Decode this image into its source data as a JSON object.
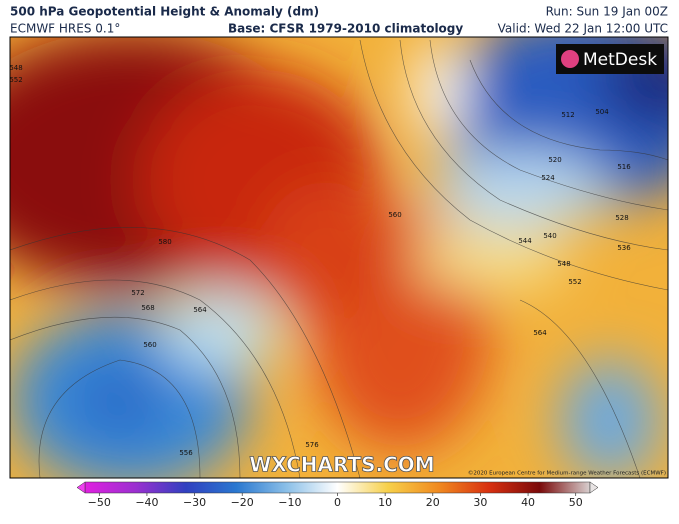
{
  "header": {
    "title": "500 hPa Geopotential Height & Anomaly (dm)",
    "model": "ECMWF HRES 0.1°",
    "base": "Base: CFSR 1979-2010 climatology",
    "run": "Run: Sun 19 Jan 00Z",
    "valid": "Valid: Wed 22 Jan 12:00 UTC"
  },
  "map": {
    "logo": "MetDesk",
    "watermark": "WXCHARTS.COM",
    "copyright": "©2020 European Centre for Medium-range Weather Forecasts (ECMWF)",
    "contour_labels": [
      548,
      552,
      580,
      572,
      568,
      564,
      560,
      556,
      576,
      560,
      520,
      524,
      516,
      528,
      536,
      540,
      544,
      548,
      552,
      564,
      512,
      504
    ]
  },
  "colorbar": {
    "lim": [
      -53,
      53
    ],
    "ticks": [
      {
        "value": -50,
        "label": "−50"
      },
      {
        "value": -40,
        "label": "−40"
      },
      {
        "value": -30,
        "label": "−30"
      },
      {
        "value": -20,
        "label": "−20"
      },
      {
        "value": -10,
        "label": "−10"
      },
      0,
      10,
      20,
      30,
      40,
      50
    ]
  }
}
